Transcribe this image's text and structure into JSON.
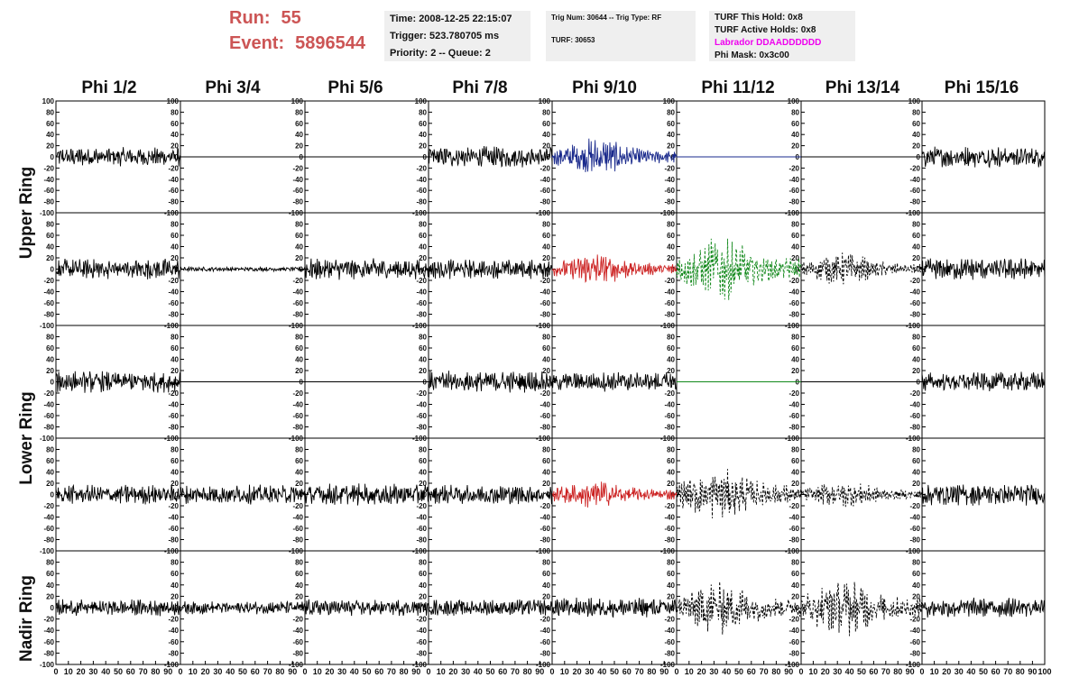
{
  "header": {
    "run_label": "Run:",
    "run_value": "55",
    "event_label": "Event:",
    "event_value": "5896544"
  },
  "time_box": {
    "time": "Time: 2008-12-25 22:15:07",
    "trigger": "Trigger: 523.780705 ms",
    "priority": "Priority: 2 -- Queue: 2"
  },
  "trig_box": {
    "trig": "Trig Num: 30644 -- Trig Type: RF",
    "turf": "TURF: 30653"
  },
  "turf_box": {
    "hold": "TURF This Hold: 0x8",
    "active": "TURF Active Holds: 0x8",
    "labrador": "Labrador DDAADDDDDD",
    "phi_mask": "Phi Mask: 0x3c00"
  },
  "columns": [
    "Phi 1/2",
    "Phi 3/4",
    "Phi 5/6",
    "Phi 7/8",
    "Phi 9/10",
    "Phi 11/12",
    "Phi 13/14",
    "Phi 15/16"
  ],
  "rows": [
    "Upper Ring",
    "Lower Ring",
    "Nadir Ring"
  ],
  "axes": {
    "y_ticks": [
      "100",
      "80",
      "60",
      "40",
      "20",
      "0",
      "-20",
      "-40",
      "-60",
      "-80",
      "-100"
    ],
    "x_ticks": [
      "0",
      "10",
      "20",
      "30",
      "40",
      "50",
      "60",
      "70",
      "80",
      "90",
      "100"
    ],
    "y_range": [
      -100,
      100
    ],
    "x_range": [
      0,
      100
    ]
  },
  "colors": {
    "run_text": "#cc5555",
    "labrador_text": "#ee00ee",
    "trace_black": "#000000",
    "trace_blue": "#1a2a8c",
    "trace_red": "#cc2222",
    "trace_green": "#11881a",
    "box_bg": "#efefef"
  },
  "chart_data": {
    "type": "line",
    "xlabel": "",
    "ylabel": "",
    "grid": false,
    "panels": [
      {
        "row": 0,
        "col": 0,
        "color": "black",
        "style": "solid",
        "amplitude": 18,
        "flat": false
      },
      {
        "row": 0,
        "col": 1,
        "color": "black",
        "style": "solid",
        "amplitude": 0,
        "flat": true
      },
      {
        "row": 0,
        "col": 2,
        "color": "black",
        "style": "solid",
        "amplitude": 0,
        "flat": true
      },
      {
        "row": 0,
        "col": 3,
        "color": "black",
        "style": "solid",
        "amplitude": 20,
        "flat": false
      },
      {
        "row": 0,
        "col": 4,
        "color": "blue",
        "style": "solid",
        "amplitude": 35,
        "flat": false
      },
      {
        "row": 0,
        "col": 5,
        "color": "blue",
        "style": "solid",
        "amplitude": 0,
        "flat": true
      },
      {
        "row": 0,
        "col": 6,
        "color": "black",
        "style": "solid",
        "amplitude": 0,
        "flat": true
      },
      {
        "row": 0,
        "col": 7,
        "color": "black",
        "style": "solid",
        "amplitude": 20,
        "flat": false
      },
      {
        "row": 1,
        "col": 0,
        "color": "black",
        "style": "solid",
        "amplitude": 20,
        "flat": false
      },
      {
        "row": 1,
        "col": 1,
        "color": "black",
        "style": "solid",
        "amplitude": 4,
        "flat": false
      },
      {
        "row": 1,
        "col": 2,
        "color": "black",
        "style": "solid",
        "amplitude": 20,
        "flat": false
      },
      {
        "row": 1,
        "col": 3,
        "color": "black",
        "style": "solid",
        "amplitude": 18,
        "flat": false
      },
      {
        "row": 1,
        "col": 4,
        "color": "red",
        "style": "solid",
        "amplitude": 30,
        "flat": false
      },
      {
        "row": 1,
        "col": 5,
        "color": "green",
        "style": "dashed",
        "amplitude": 60,
        "flat": false
      },
      {
        "row": 1,
        "col": 6,
        "color": "black",
        "style": "dashed",
        "amplitude": 30,
        "flat": false
      },
      {
        "row": 1,
        "col": 7,
        "color": "black",
        "style": "solid",
        "amplitude": 20,
        "flat": false
      },
      {
        "row": 2,
        "col": 0,
        "color": "black",
        "style": "solid",
        "amplitude": 20,
        "flat": false
      },
      {
        "row": 2,
        "col": 1,
        "color": "black",
        "style": "solid",
        "amplitude": 0,
        "flat": true
      },
      {
        "row": 2,
        "col": 2,
        "color": "black",
        "style": "solid",
        "amplitude": 0,
        "flat": true
      },
      {
        "row": 2,
        "col": 3,
        "color": "black",
        "style": "solid",
        "amplitude": 20,
        "flat": false
      },
      {
        "row": 2,
        "col": 4,
        "color": "black",
        "style": "solid",
        "amplitude": 18,
        "flat": false
      },
      {
        "row": 2,
        "col": 5,
        "color": "green",
        "style": "solid",
        "amplitude": 0,
        "flat": true
      },
      {
        "row": 2,
        "col": 6,
        "color": "black",
        "style": "solid",
        "amplitude": 0,
        "flat": true
      },
      {
        "row": 2,
        "col": 7,
        "color": "black",
        "style": "solid",
        "amplitude": 18,
        "flat": false
      },
      {
        "row": 3,
        "col": 0,
        "color": "black",
        "style": "solid",
        "amplitude": 18,
        "flat": false
      },
      {
        "row": 3,
        "col": 1,
        "color": "black",
        "style": "solid",
        "amplitude": 18,
        "flat": false
      },
      {
        "row": 3,
        "col": 2,
        "color": "black",
        "style": "solid",
        "amplitude": 20,
        "flat": false
      },
      {
        "row": 3,
        "col": 3,
        "color": "black",
        "style": "solid",
        "amplitude": 18,
        "flat": false
      },
      {
        "row": 3,
        "col": 4,
        "color": "red",
        "style": "solid",
        "amplitude": 28,
        "flat": false
      },
      {
        "row": 3,
        "col": 5,
        "color": "black",
        "style": "dashed",
        "amplitude": 50,
        "flat": false
      },
      {
        "row": 3,
        "col": 6,
        "color": "black",
        "style": "dashed",
        "amplitude": 25,
        "flat": false
      },
      {
        "row": 3,
        "col": 7,
        "color": "black",
        "style": "solid",
        "amplitude": 20,
        "flat": false
      },
      {
        "row": 4,
        "col": 0,
        "color": "black",
        "style": "solid",
        "amplitude": 15,
        "flat": false
      },
      {
        "row": 4,
        "col": 1,
        "color": "black",
        "style": "solid",
        "amplitude": 12,
        "flat": false
      },
      {
        "row": 4,
        "col": 2,
        "color": "black",
        "style": "solid",
        "amplitude": 15,
        "flat": false
      },
      {
        "row": 4,
        "col": 3,
        "color": "black",
        "style": "solid",
        "amplitude": 15,
        "flat": false
      },
      {
        "row": 4,
        "col": 4,
        "color": "black",
        "style": "solid",
        "amplitude": 18,
        "flat": false
      },
      {
        "row": 4,
        "col": 5,
        "color": "black",
        "style": "dashed",
        "amplitude": 50,
        "flat": false
      },
      {
        "row": 4,
        "col": 6,
        "color": "black",
        "style": "dashed",
        "amplitude": 55,
        "flat": false
      },
      {
        "row": 4,
        "col": 7,
        "color": "black",
        "style": "solid",
        "amplitude": 18,
        "flat": false
      }
    ]
  }
}
